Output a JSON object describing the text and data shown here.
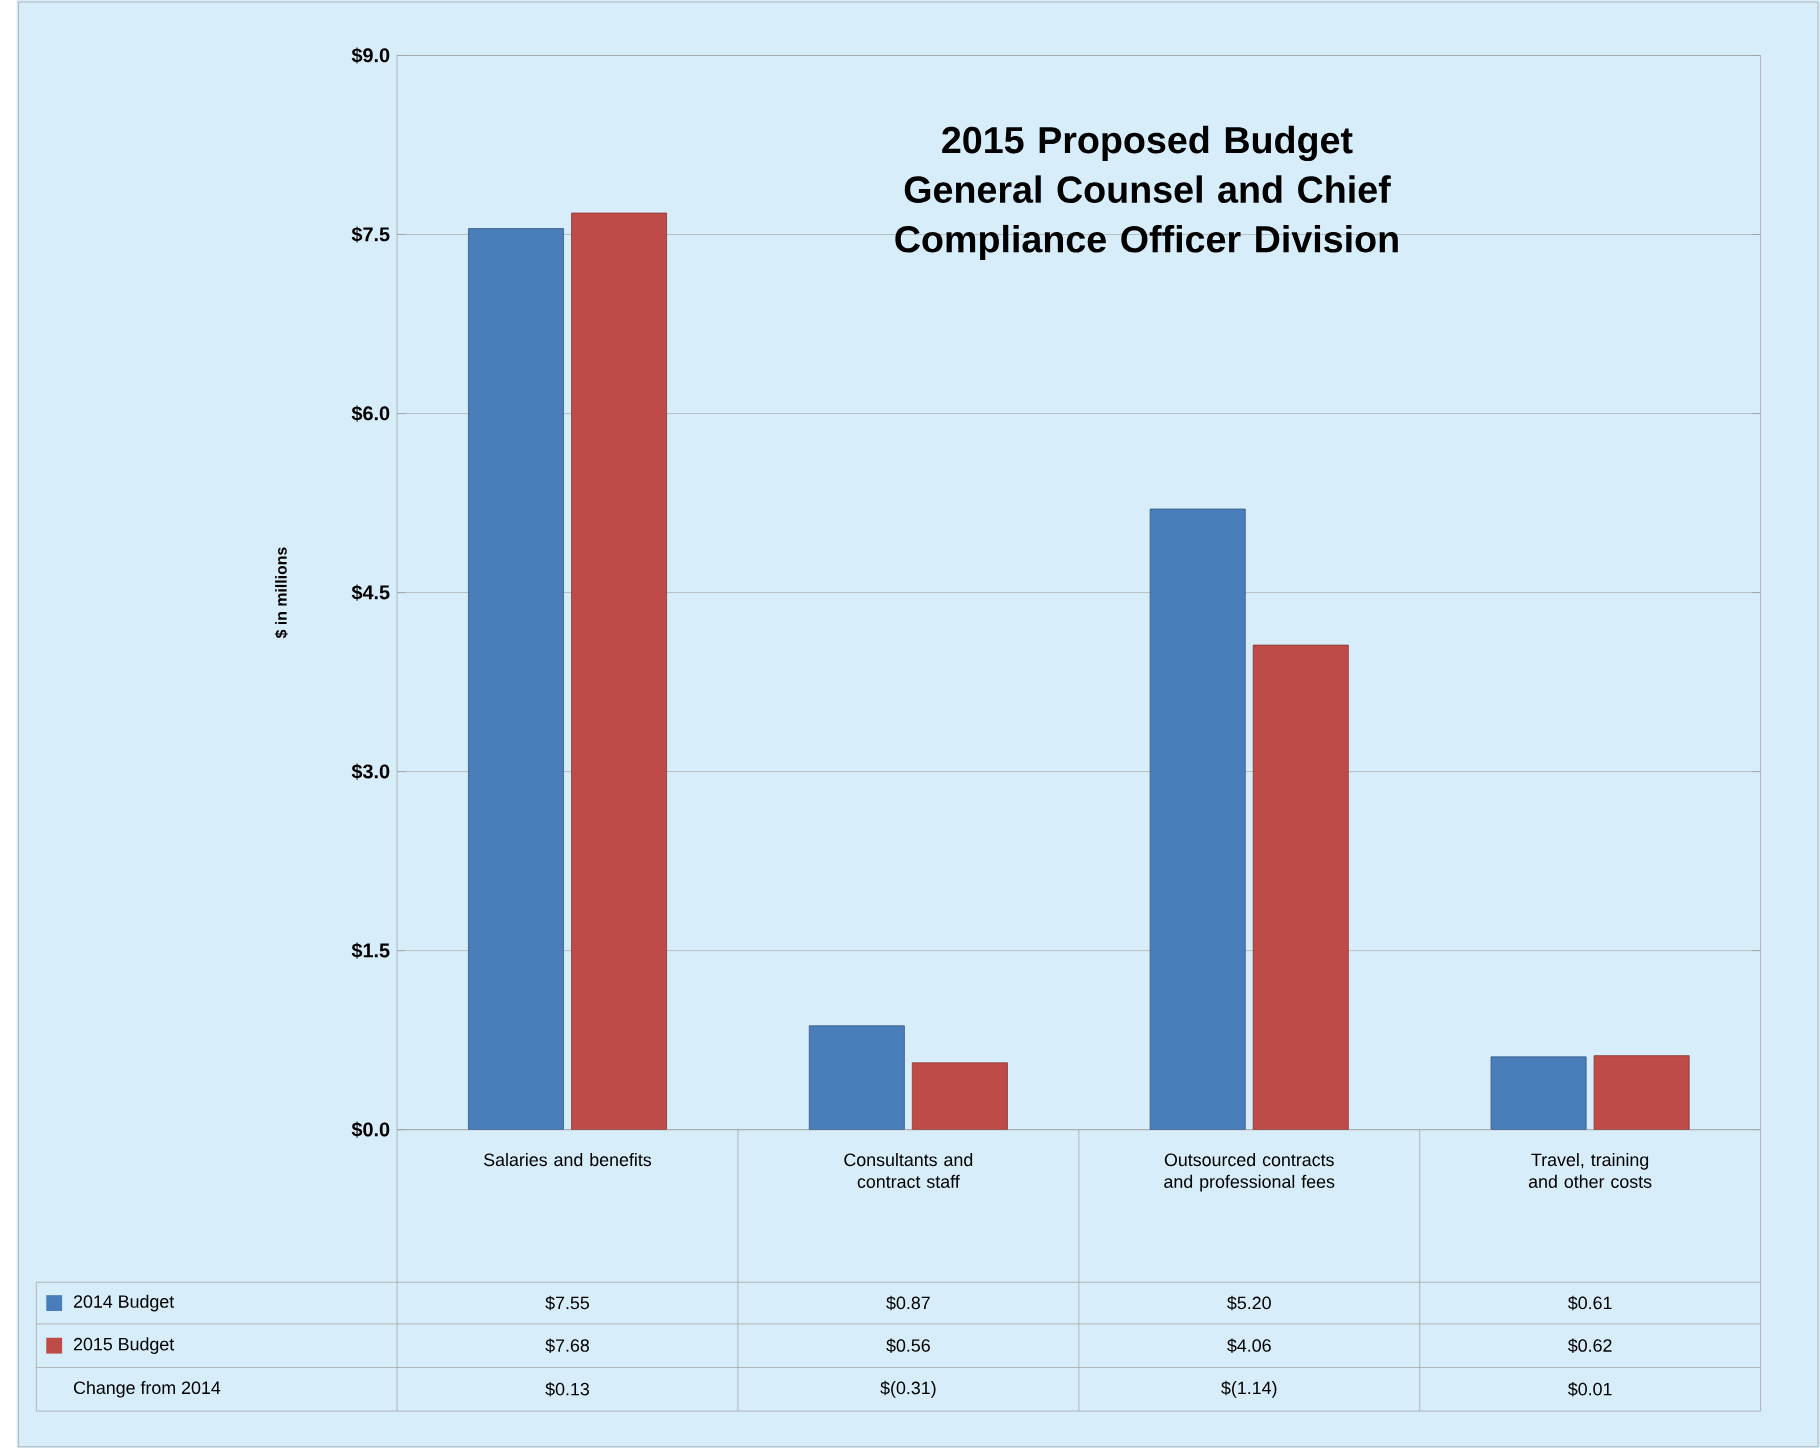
{
  "chart_data": {
    "type": "bar",
    "title": "2015 Proposed Budget",
    "subtitle": "General Counsel and Chief Compliance Officer Division",
    "ylabel": "$ in millions",
    "categories": [
      "Salaries and benefits",
      "Consultants and contract staff",
      "Outsourced contracts and professional fees",
      "Travel, training and other costs"
    ],
    "series": [
      {
        "name": "2014 Budget",
        "color": "#4a7ebb",
        "values": [
          7.55,
          0.87,
          5.2,
          0.61
        ],
        "value_labels": [
          "$7.55",
          "$0.87",
          "$5.20",
          "$0.61"
        ]
      },
      {
        "name": "2015 Budget",
        "color": "#be4b48",
        "values": [
          7.68,
          0.56,
          4.06,
          0.62
        ],
        "value_labels": [
          "$7.68",
          "$0.56",
          "$4.06",
          "$0.62"
        ]
      }
    ],
    "ylim": [
      0,
      9
    ],
    "yticks": [
      {
        "value": 0,
        "label": "$0.0"
      },
      {
        "value": 1.5,
        "label": "$1.5"
      },
      {
        "value": 3,
        "label": "$3.0"
      },
      {
        "value": 4.5,
        "label": "$4.5"
      },
      {
        "value": 6,
        "label": "$6.0"
      },
      {
        "value": 7.5,
        "label": "$7.5"
      },
      {
        "value": 9,
        "label": "$9.0"
      }
    ],
    "grid": "y",
    "legend": "bottom",
    "annotations": [
      "Change from 2014",
      "$0.13",
      "$(0.31)",
      "$(1.14)",
      "$0.01"
    ]
  }
}
